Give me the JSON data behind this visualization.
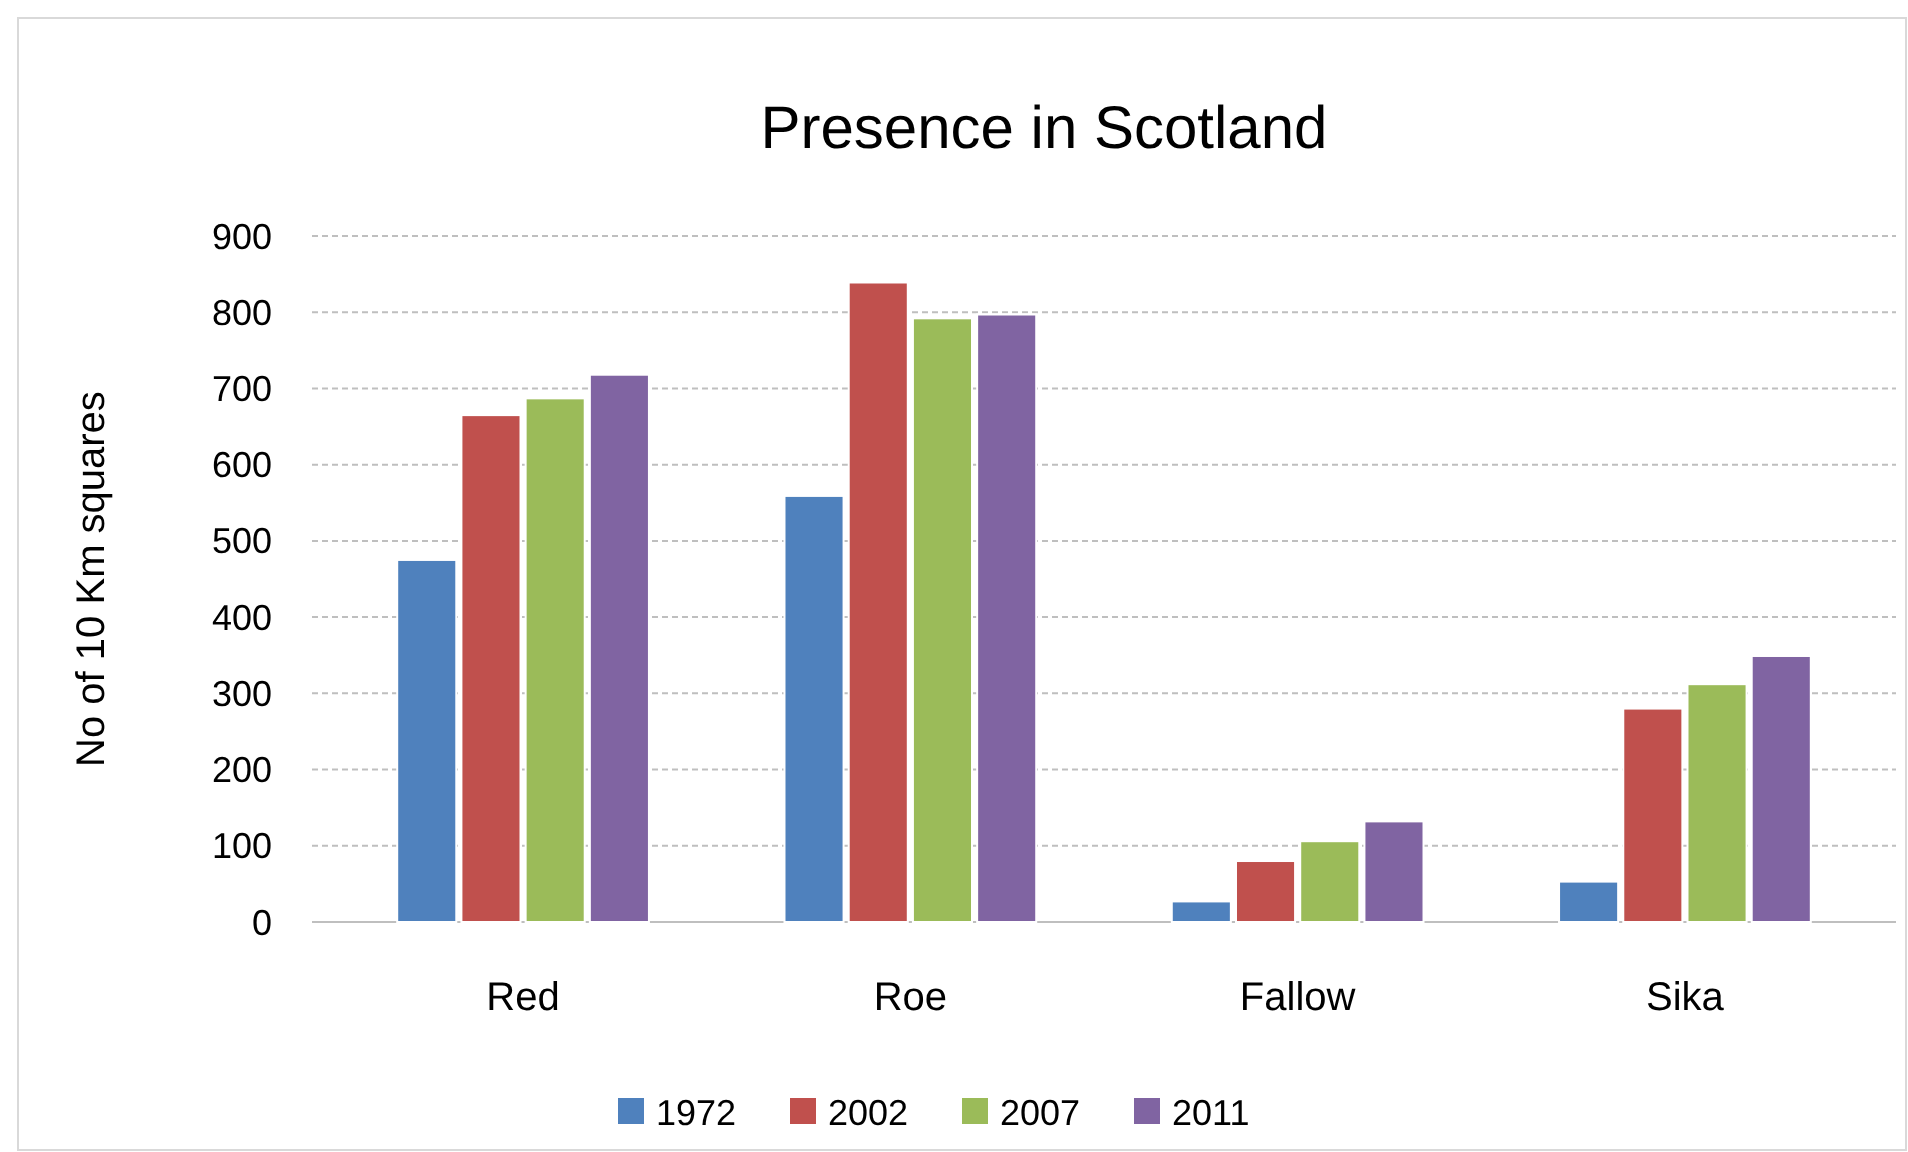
{
  "chart_data": {
    "type": "bar",
    "title": "Presence in Scotland",
    "ylabel": "No of 10 Km squares",
    "categories": [
      "Red",
      "Roe",
      "Fallow",
      "Sika"
    ],
    "series": [
      {
        "name": "1972",
        "color": "#4f81bd",
        "values": [
          475,
          559,
          27,
          53
        ]
      },
      {
        "name": "2002",
        "color": "#c0504d",
        "values": [
          665,
          839,
          80,
          280
        ]
      },
      {
        "name": "2007",
        "color": "#9bbb59",
        "values": [
          687,
          792,
          106,
          312
        ]
      },
      {
        "name": "2011",
        "color": "#8064a2",
        "values": [
          718,
          797,
          132,
          349
        ]
      }
    ],
    "ylim": [
      0,
      900
    ],
    "yticks": [
      0,
      100,
      200,
      300,
      400,
      500,
      600,
      700,
      800,
      900
    ],
    "grid": "y",
    "legend": "bottom"
  }
}
